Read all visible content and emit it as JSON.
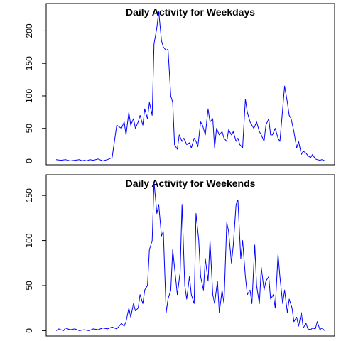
{
  "chart_data": [
    {
      "type": "line",
      "title": "Daily Activity for Weekdays",
      "xlabel": "",
      "ylabel": "",
      "ylim": [
        -6,
        242
      ],
      "yticks": [
        0,
        50,
        100,
        150,
        200
      ],
      "x_ticks_shown": false,
      "grid": false,
      "legend": "none",
      "color": "#0000ff",
      "series": [
        {
          "x": [
            0,
            5,
            10,
            15,
            20,
            25,
            28,
            30,
            33,
            36,
            40,
            45,
            50,
            55,
            60,
            65,
            70,
            73,
            75,
            78,
            80,
            83,
            85,
            88,
            90,
            93,
            95,
            98,
            100,
            103,
            105,
            108,
            110,
            113,
            115,
            118,
            120,
            123,
            125,
            127,
            130,
            132,
            135,
            137,
            140,
            143,
            145,
            148,
            150,
            152,
            155,
            157,
            160,
            163,
            165,
            168,
            170,
            172,
            175,
            178,
            180,
            183,
            185,
            188,
            190,
            193,
            195,
            197,
            200,
            203,
            205,
            208,
            210,
            212,
            215,
            218,
            220,
            223,
            225,
            228,
            230,
            232,
            235,
            238,
            240,
            243,
            245,
            248,
            250,
            252,
            255,
            258,
            260,
            263,
            265,
            268,
            270,
            273,
            275,
            278,
            280,
            283,
            285,
            287,
            288
          ],
          "y": [
            2,
            1,
            2,
            0,
            1,
            2,
            0,
            1,
            0,
            2,
            1,
            3,
            0,
            2,
            5,
            55,
            50,
            60,
            40,
            75,
            55,
            65,
            50,
            60,
            70,
            55,
            80,
            65,
            90,
            70,
            180,
            205,
            230,
            185,
            175,
            170,
            172,
            100,
            90,
            25,
            18,
            40,
            30,
            35,
            25,
            28,
            20,
            35,
            30,
            22,
            60,
            55,
            40,
            80,
            60,
            65,
            20,
            50,
            40,
            45,
            35,
            30,
            48,
            40,
            45,
            30,
            35,
            25,
            20,
            95,
            75,
            60,
            55,
            50,
            60,
            45,
            40,
            30,
            55,
            65,
            40,
            40,
            50,
            35,
            30,
            80,
            115,
            90,
            70,
            65,
            45,
            20,
            30,
            10,
            15,
            12,
            8,
            5,
            10,
            3,
            2,
            1,
            2,
            1,
            0
          ]
        }
      ]
    },
    {
      "type": "line",
      "title": "Daily Activity for Weekends",
      "xlabel": "",
      "ylabel": "",
      "ylim": [
        -6,
        173
      ],
      "yticks": [
        0,
        50,
        100,
        150
      ],
      "x_ticks_shown": false,
      "grid": false,
      "legend": "none",
      "color": "#0000ff",
      "series": [
        {
          "x": [
            0,
            3,
            5,
            8,
            10,
            15,
            20,
            25,
            30,
            35,
            40,
            45,
            50,
            55,
            60,
            65,
            70,
            73,
            75,
            78,
            80,
            83,
            85,
            88,
            90,
            93,
            95,
            98,
            100,
            103,
            105,
            108,
            110,
            113,
            115,
            118,
            120,
            123,
            125,
            128,
            130,
            133,
            135,
            138,
            140,
            143,
            145,
            148,
            150,
            153,
            155,
            158,
            160,
            163,
            165,
            168,
            170,
            173,
            175,
            178,
            180,
            183,
            185,
            188,
            190,
            193,
            195,
            198,
            200,
            203,
            205,
            208,
            210,
            213,
            215,
            218,
            220,
            223,
            225,
            228,
            230,
            233,
            235,
            238,
            240,
            243,
            245,
            248,
            250,
            253,
            255,
            258,
            260,
            263,
            265,
            268,
            270,
            273,
            275,
            278,
            280,
            283,
            285,
            288
          ],
          "y": [
            0,
            2,
            1,
            0,
            3,
            1,
            2,
            0,
            1,
            0,
            2,
            1,
            3,
            2,
            4,
            2,
            8,
            5,
            10,
            25,
            15,
            30,
            22,
            25,
            40,
            30,
            45,
            50,
            90,
            100,
            165,
            130,
            140,
            105,
            110,
            20,
            35,
            45,
            90,
            60,
            40,
            65,
            140,
            50,
            35,
            60,
            40,
            30,
            130,
            100,
            60,
            45,
            80,
            55,
            100,
            40,
            30,
            55,
            20,
            45,
            30,
            120,
            110,
            75,
            95,
            140,
            145,
            80,
            100,
            60,
            40,
            45,
            30,
            95,
            50,
            30,
            70,
            45,
            55,
            60,
            35,
            40,
            25,
            85,
            60,
            30,
            45,
            20,
            35,
            25,
            10,
            15,
            5,
            20,
            3,
            8,
            2,
            1,
            3,
            2,
            10,
            1,
            3,
            0
          ]
        }
      ]
    }
  ]
}
